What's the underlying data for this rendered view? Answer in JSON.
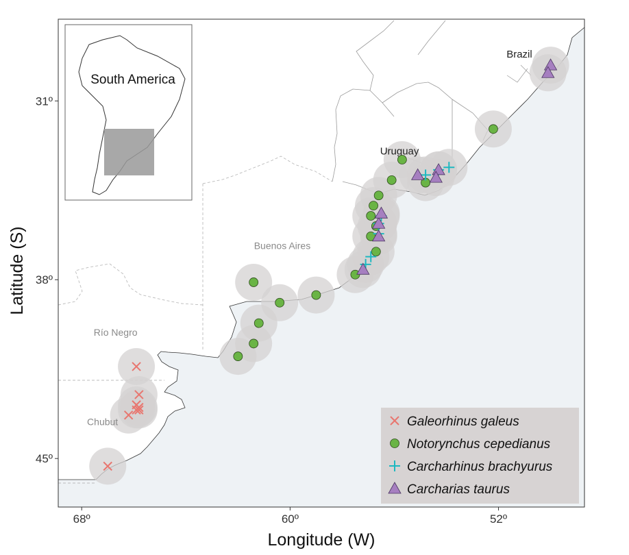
{
  "colors": {
    "ocean": "#eef2f5",
    "land": "#ffffff",
    "coast": "#333333",
    "buffer": "#d4d2d2",
    "legend_bg": "#d7d3d3",
    "galeorhinus": "#e8766f",
    "notorynchus": "#6ab445",
    "carcharhinus": "#1eb8c0",
    "carcharias": "#a67fc0"
  },
  "chart_data": {
    "type": "scatter",
    "xlabel": "Longitude (W)",
    "ylabel": "Latitude (S)",
    "x_ticks": [
      "68º",
      "60º",
      "52º"
    ],
    "y_ticks": [
      "31º",
      "38º",
      "45º"
    ],
    "xlim": [
      68.9,
      48.7
    ],
    "ylim": [
      46.9,
      27.8
    ],
    "grid": false,
    "legend_position": "bottom-right",
    "region_labels": [
      {
        "id": "brazil",
        "text": "Brazil",
        "lon": 51.2,
        "lat": 29.3,
        "style": "country"
      },
      {
        "id": "uruguay",
        "text": "Uruguay",
        "lon": 55.8,
        "lat": 33.1,
        "style": "country"
      },
      {
        "id": "buenos-aires",
        "text": "Buenos Aires",
        "lon": 60.3,
        "lat": 36.8,
        "style": "province"
      },
      {
        "id": "rio-negro",
        "text": "Río Negro",
        "lon": 66.7,
        "lat": 40.2,
        "style": "province"
      },
      {
        "id": "chubut",
        "text": "Chubut",
        "lon": 67.2,
        "lat": 43.7,
        "style": "province"
      }
    ],
    "inset": {
      "label": "South America"
    },
    "series": [
      {
        "name": "Galeorhinus galeus",
        "marker": "x",
        "points": [
          {
            "lon": 65.9,
            "lat": 41.4
          },
          {
            "lon": 65.8,
            "lat": 42.5
          },
          {
            "lon": 65.8,
            "lat": 43.1
          },
          {
            "lon": 65.8,
            "lat": 43.0
          },
          {
            "lon": 65.9,
            "lat": 43.1
          },
          {
            "lon": 66.2,
            "lat": 43.3
          },
          {
            "lon": 65.9,
            "lat": 42.9
          },
          {
            "lon": 67.0,
            "lat": 45.3
          }
        ]
      },
      {
        "name": "Notorynchus cepedianus",
        "marker": "circle",
        "points": [
          {
            "lon": 62.0,
            "lat": 41.0
          },
          {
            "lon": 61.4,
            "lat": 40.5
          },
          {
            "lon": 61.2,
            "lat": 39.7
          },
          {
            "lon": 61.4,
            "lat": 38.1
          },
          {
            "lon": 60.4,
            "lat": 38.9
          },
          {
            "lon": 59.0,
            "lat": 38.6
          },
          {
            "lon": 57.5,
            "lat": 37.8
          },
          {
            "lon": 56.7,
            "lat": 36.9
          },
          {
            "lon": 56.9,
            "lat": 36.3
          },
          {
            "lon": 56.7,
            "lat": 35.9
          },
          {
            "lon": 56.9,
            "lat": 35.5
          },
          {
            "lon": 56.8,
            "lat": 35.1
          },
          {
            "lon": 56.6,
            "lat": 34.7
          },
          {
            "lon": 56.1,
            "lat": 34.1
          },
          {
            "lon": 54.8,
            "lat": 34.2
          },
          {
            "lon": 55.7,
            "lat": 33.3
          },
          {
            "lon": 52.2,
            "lat": 32.1
          }
        ]
      },
      {
        "name": "Carcharhinus brachyurus",
        "marker": "plus",
        "points": [
          {
            "lon": 57.1,
            "lat": 37.4
          },
          {
            "lon": 56.9,
            "lat": 37.1
          },
          {
            "lon": 56.6,
            "lat": 36.2
          },
          {
            "lon": 56.6,
            "lat": 35.8
          },
          {
            "lon": 56.5,
            "lat": 35.5
          },
          {
            "lon": 54.8,
            "lat": 33.9
          },
          {
            "lon": 54.3,
            "lat": 33.7
          },
          {
            "lon": 53.9,
            "lat": 33.6
          }
        ]
      },
      {
        "name": "Carcharias taurus",
        "marker": "triangle",
        "points": [
          {
            "lon": 57.2,
            "lat": 37.6
          },
          {
            "lon": 56.6,
            "lat": 36.3
          },
          {
            "lon": 56.6,
            "lat": 35.8
          },
          {
            "lon": 56.5,
            "lat": 35.4
          },
          {
            "lon": 55.1,
            "lat": 33.9
          },
          {
            "lon": 54.3,
            "lat": 33.7
          },
          {
            "lon": 54.4,
            "lat": 34.0
          },
          {
            "lon": 50.0,
            "lat": 29.6
          },
          {
            "lon": 50.1,
            "lat": 29.9
          }
        ]
      }
    ]
  }
}
